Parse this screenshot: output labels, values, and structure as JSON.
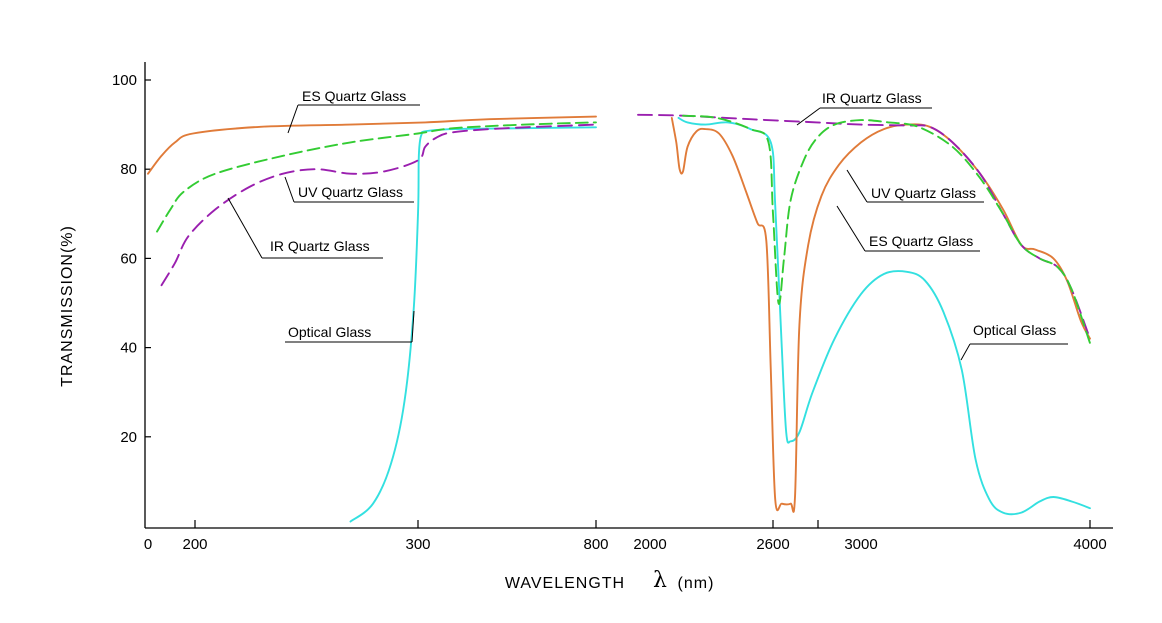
{
  "chart_data": {
    "type": "line",
    "xlabel": "WAVELENGTH",
    "xlabel_symbol": "λ",
    "xlabel_unit": "(nm)",
    "ylabel": "TRANSMISSION(%)",
    "ylim": [
      0,
      105
    ],
    "yticks": [
      20,
      40,
      60,
      80,
      100
    ],
    "xaxis_note": "broken axis with two non-linear segments",
    "x_tick_labels": [
      "0",
      "200",
      "300",
      "800",
      "2000",
      "2600",
      "3000",
      "4000"
    ],
    "colors": {
      "es_quartz": "#e07b39",
      "uv_quartz": "#33cc33",
      "ir_quartz": "#9a1faf",
      "optical": "#33e0e0"
    },
    "series": [
      {
        "name": "ES Quartz Glass",
        "key": "es_quartz",
        "style": "solid",
        "points": [
          [
            150,
            79
          ],
          [
            165,
            83
          ],
          [
            180,
            86
          ],
          [
            200,
            88
          ],
          [
            230,
            89.5
          ],
          [
            270,
            90
          ],
          [
            320,
            90.5
          ],
          [
            500,
            91.2
          ],
          [
            800,
            91.8
          ],
          [
            2150,
            91.5
          ],
          [
            2170,
            86
          ],
          [
            2185,
            80
          ],
          [
            2200,
            79.5
          ],
          [
            2220,
            85
          ],
          [
            2260,
            88.5
          ],
          [
            2300,
            89
          ],
          [
            2360,
            88
          ],
          [
            2420,
            83
          ],
          [
            2480,
            75
          ],
          [
            2530,
            68
          ],
          [
            2570,
            64
          ],
          [
            2590,
            35
          ],
          [
            2610,
            6
          ],
          [
            2640,
            5
          ],
          [
            2680,
            5
          ],
          [
            2700,
            6.5
          ],
          [
            2720,
            45
          ],
          [
            2760,
            63
          ],
          [
            2820,
            74
          ],
          [
            2900,
            81
          ],
          [
            3000,
            86
          ],
          [
            3100,
            89
          ],
          [
            3200,
            90
          ],
          [
            3300,
            89.5
          ],
          [
            3400,
            86
          ],
          [
            3520,
            79
          ],
          [
            3620,
            71
          ],
          [
            3700,
            63
          ],
          [
            3760,
            62
          ],
          [
            3840,
            60
          ],
          [
            3900,
            55
          ],
          [
            3960,
            46
          ],
          [
            4000,
            42
          ]
        ]
      },
      {
        "name": "UV Quartz Glass",
        "key": "uv_quartz",
        "style": "dashed",
        "points": [
          [
            160,
            66
          ],
          [
            175,
            71
          ],
          [
            190,
            75
          ],
          [
            210,
            79
          ],
          [
            240,
            83
          ],
          [
            270,
            86
          ],
          [
            300,
            88
          ],
          [
            400,
            89.2
          ],
          [
            600,
            90
          ],
          [
            800,
            90.5
          ],
          [
            2200,
            92
          ],
          [
            2350,
            91.5
          ],
          [
            2500,
            89
          ],
          [
            2580,
            86
          ],
          [
            2600,
            70
          ],
          [
            2625,
            50
          ],
          [
            2650,
            60
          ],
          [
            2680,
            73
          ],
          [
            2740,
            82
          ],
          [
            2800,
            87
          ],
          [
            2880,
            90
          ],
          [
            3000,
            91
          ],
          [
            3120,
            90.5
          ],
          [
            3250,
            89.5
          ],
          [
            3400,
            85
          ],
          [
            3520,
            78
          ],
          [
            3620,
            70
          ],
          [
            3700,
            63
          ],
          [
            3780,
            60
          ],
          [
            3860,
            58
          ],
          [
            3920,
            53
          ],
          [
            4000,
            41
          ]
        ]
      },
      {
        "name": "IR Quartz Glass",
        "key": "ir_quartz",
        "style": "dashed",
        "points": [
          [
            165,
            54
          ],
          [
            180,
            59
          ],
          [
            195,
            65
          ],
          [
            210,
            71
          ],
          [
            225,
            76
          ],
          [
            240,
            79
          ],
          [
            255,
            80
          ],
          [
            270,
            79
          ],
          [
            285,
            79.5
          ],
          [
            300,
            82
          ],
          [
            320,
            85
          ],
          [
            350,
            87
          ],
          [
            400,
            88.3
          ],
          [
            550,
            89.2
          ],
          [
            800,
            90
          ],
          [
            2000,
            92.2
          ],
          [
            2200,
            92
          ],
          [
            2500,
            91.2
          ],
          [
            2800,
            90.5
          ],
          [
            3000,
            90
          ],
          [
            3200,
            89.8
          ],
          [
            3300,
            89.5
          ],
          [
            3400,
            86
          ],
          [
            3520,
            79
          ],
          [
            3620,
            70
          ],
          [
            3700,
            63
          ],
          [
            3780,
            60
          ],
          [
            3860,
            58
          ],
          [
            3920,
            53
          ],
          [
            4000,
            42
          ]
        ]
      },
      {
        "name": "Optical Glass",
        "key": "optical",
        "style": "solid",
        "points": [
          [
            270,
            1
          ],
          [
            280,
            5
          ],
          [
            288,
            14
          ],
          [
            294,
            28
          ],
          [
            298,
            48
          ],
          [
            300,
            70
          ],
          [
            302,
            82
          ],
          [
            305,
            86
          ],
          [
            310,
            87.8
          ],
          [
            320,
            88.5
          ],
          [
            400,
            89
          ],
          [
            600,
            89.2
          ],
          [
            800,
            89.4
          ],
          [
            2180,
            91.5
          ],
          [
            2220,
            90.5
          ],
          [
            2300,
            90
          ],
          [
            2400,
            90.5
          ],
          [
            2500,
            89
          ],
          [
            2590,
            86
          ],
          [
            2610,
            72
          ],
          [
            2640,
            40
          ],
          [
            2660,
            21
          ],
          [
            2680,
            19
          ],
          [
            2720,
            21
          ],
          [
            2780,
            30
          ],
          [
            2880,
            42
          ],
          [
            3000,
            52
          ],
          [
            3100,
            56.5
          ],
          [
            3200,
            57
          ],
          [
            3280,
            55
          ],
          [
            3360,
            48
          ],
          [
            3440,
            35
          ],
          [
            3500,
            15
          ],
          [
            3560,
            6
          ],
          [
            3620,
            3
          ],
          [
            3700,
            3
          ],
          [
            3780,
            5.5
          ],
          [
            3840,
            6.5
          ],
          [
            3920,
            5.5
          ],
          [
            4000,
            4
          ]
        ]
      }
    ],
    "annotations": [
      {
        "text": "ES Quartz Glass",
        "series": "es_quartz"
      },
      {
        "text": "UV Quartz Glass",
        "series": "uv_quartz"
      },
      {
        "text": "IR Quartz Glass",
        "series": "ir_quartz"
      },
      {
        "text": "Optical  Glass",
        "series": "optical"
      },
      {
        "text": "IR Quartz Glass",
        "series": "ir_quartz"
      },
      {
        "text": "UV Quartz Glass",
        "series": "uv_quartz"
      },
      {
        "text": "ES Quartz Glass",
        "series": "es_quartz"
      },
      {
        "text": "Optical  Glass",
        "series": "optical"
      }
    ]
  }
}
